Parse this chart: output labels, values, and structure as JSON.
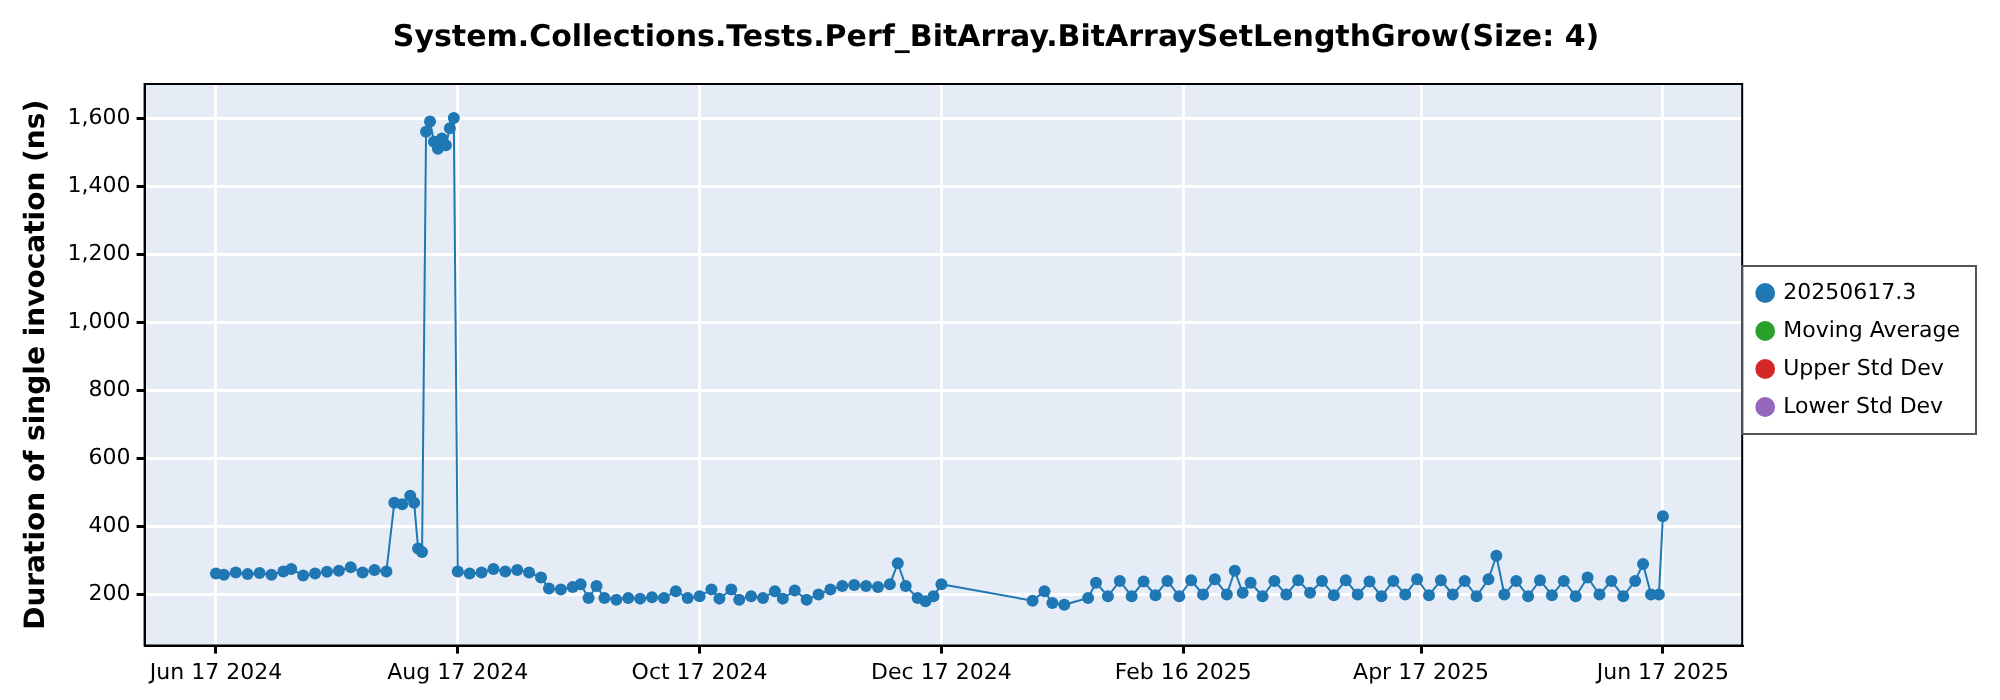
{
  "chart_data": {
    "type": "line",
    "title": "System.Collections.Tests.Perf_BitArray.BitArraySetLengthGrow(Size: 4)",
    "ylabel": "Duration of single invocation (ns)",
    "x": [
      "2024-06-17",
      "2024-06-19",
      "2024-06-22",
      "2024-06-25",
      "2024-06-28",
      "2024-07-01",
      "2024-07-04",
      "2024-07-06",
      "2024-07-09",
      "2024-07-12",
      "2024-07-15",
      "2024-07-18",
      "2024-07-21",
      "2024-07-24",
      "2024-07-27",
      "2024-07-30",
      "2024-08-01",
      "2024-08-03",
      "2024-08-05",
      "2024-08-06",
      "2024-08-07",
      "2024-08-08",
      "2024-08-09",
      "2024-08-10",
      "2024-08-11",
      "2024-08-12",
      "2024-08-13",
      "2024-08-14",
      "2024-08-15",
      "2024-08-16",
      "2024-08-17",
      "2024-08-20",
      "2024-08-23",
      "2024-08-26",
      "2024-08-29",
      "2024-09-01",
      "2024-09-04",
      "2024-09-07",
      "2024-09-09",
      "2024-09-12",
      "2024-09-15",
      "2024-09-17",
      "2024-09-19",
      "2024-09-21",
      "2024-09-23",
      "2024-09-26",
      "2024-09-29",
      "2024-10-02",
      "2024-10-05",
      "2024-10-08",
      "2024-10-11",
      "2024-10-14",
      "2024-10-17",
      "2024-10-20",
      "2024-10-22",
      "2024-10-25",
      "2024-10-27",
      "2024-10-30",
      "2024-11-02",
      "2024-11-05",
      "2024-11-07",
      "2024-11-10",
      "2024-11-13",
      "2024-11-16",
      "2024-11-19",
      "2024-11-22",
      "2024-11-25",
      "2024-11-28",
      "2024-12-01",
      "2024-12-04",
      "2024-12-06",
      "2024-12-08",
      "2024-12-11",
      "2024-12-13",
      "2024-12-15",
      "2024-12-17",
      "2025-01-09",
      "2025-01-12",
      "2025-01-14",
      "2025-01-17",
      "2025-01-23",
      "2025-01-25",
      "2025-01-28",
      "2025-01-31",
      "2025-02-03",
      "2025-02-06",
      "2025-02-09",
      "2025-02-12",
      "2025-02-15",
      "2025-02-18",
      "2025-02-21",
      "2025-02-24",
      "2025-02-27",
      "2025-03-01",
      "2025-03-03",
      "2025-03-05",
      "2025-03-08",
      "2025-03-11",
      "2025-03-14",
      "2025-03-17",
      "2025-03-20",
      "2025-03-23",
      "2025-03-26",
      "2025-03-29",
      "2025-04-01",
      "2025-04-04",
      "2025-04-07",
      "2025-04-10",
      "2025-04-13",
      "2025-04-16",
      "2025-04-19",
      "2025-04-22",
      "2025-04-25",
      "2025-04-28",
      "2025-05-01",
      "2025-05-04",
      "2025-05-06",
      "2025-05-08",
      "2025-05-11",
      "2025-05-14",
      "2025-05-17",
      "2025-05-20",
      "2025-05-23",
      "2025-05-26",
      "2025-05-29",
      "2025-06-01",
      "2025-06-04",
      "2025-06-07",
      "2025-06-10",
      "2025-06-12",
      "2025-06-14",
      "2025-06-16",
      "2025-06-17"
    ],
    "series": [
      {
        "name": "20250617.3",
        "color": "#1f77b4",
        "values": [
          262,
          258,
          265,
          260,
          263,
          258,
          268,
          275,
          256,
          262,
          267,
          270,
          280,
          265,
          272,
          268,
          470,
          465,
          490,
          470,
          335,
          325,
          1560,
          1590,
          1530,
          1510,
          1540,
          1520,
          1570,
          1600,
          268,
          262,
          265,
          275,
          268,
          272,
          265,
          250,
          218,
          215,
          222,
          230,
          190,
          225,
          190,
          185,
          190,
          188,
          192,
          190,
          210,
          190,
          195,
          215,
          188,
          215,
          185,
          195,
          190,
          210,
          188,
          212,
          185,
          200,
          215,
          225,
          228,
          225,
          222,
          230,
          292,
          225,
          190,
          180,
          195,
          230,
          182,
          210,
          175,
          170,
          190,
          235,
          195,
          240,
          195,
          238,
          198,
          240,
          195,
          242,
          200,
          245,
          200,
          270,
          205,
          235,
          195,
          240,
          200,
          242,
          205,
          240,
          198,
          242,
          200,
          238,
          195,
          240,
          200,
          245,
          198,
          242,
          200,
          240,
          195,
          245,
          314,
          200,
          240,
          195,
          242,
          198,
          240,
          195,
          250,
          200,
          240,
          195,
          240,
          290,
          200,
          200,
          430
        ]
      },
      {
        "name": "Moving Average",
        "color": "#2ca02c",
        "values": [
          null,
          null,
          null,
          null,
          null,
          null,
          null,
          null,
          null,
          null,
          null,
          null,
          null,
          null,
          null,
          null,
          null,
          null,
          null,
          null,
          null,
          null,
          null,
          null,
          null,
          null,
          null,
          null,
          null,
          null,
          null,
          null,
          null,
          null,
          null,
          null,
          null,
          null,
          null,
          null,
          null,
          null,
          null,
          null,
          null,
          null,
          null,
          null,
          null,
          null,
          null,
          null,
          null,
          null,
          null,
          null,
          null,
          null,
          null,
          null,
          null,
          null,
          null,
          null,
          null,
          null,
          null,
          null,
          null,
          null,
          null,
          null,
          null,
          null,
          null,
          null,
          null,
          null,
          null,
          null,
          null,
          null,
          null,
          null,
          null,
          null,
          null,
          null,
          null,
          null,
          null,
          null,
          null,
          null,
          null,
          null,
          null,
          null,
          null,
          null,
          null,
          null,
          null,
          null,
          null,
          null,
          null,
          null,
          null,
          null,
          null,
          null,
          null,
          null,
          null,
          null,
          null,
          null,
          null,
          null,
          null,
          null,
          null,
          null,
          null,
          null,
          null,
          null,
          null,
          null,
          null,
          null,
          null
        ]
      },
      {
        "name": "Upper Std Dev",
        "color": "#d62728",
        "values": [
          null,
          null,
          null,
          null,
          null,
          null,
          null,
          null,
          null,
          null,
          null,
          null,
          null,
          null,
          null,
          null,
          null,
          null,
          null,
          null,
          null,
          null,
          null,
          null,
          null,
          null,
          null,
          null,
          null,
          null,
          null,
          null,
          null,
          null,
          null,
          null,
          null,
          null,
          null,
          null,
          null,
          null,
          null,
          null,
          null,
          null,
          null,
          null,
          null,
          null,
          null,
          null,
          null,
          null,
          null,
          null,
          null,
          null,
          null,
          null,
          null,
          null,
          null,
          null,
          null,
          null,
          null,
          null,
          null,
          null,
          null,
          null,
          null,
          null,
          null,
          null,
          null,
          null,
          null,
          null,
          null,
          null,
          null,
          null,
          null,
          null,
          null,
          null,
          null,
          null,
          null,
          null,
          null,
          null,
          null,
          null,
          null,
          null,
          null,
          null,
          null,
          null,
          null,
          null,
          null,
          null,
          null,
          null,
          null,
          null,
          null,
          null,
          null,
          null,
          null,
          null,
          null,
          null,
          null,
          null,
          null,
          null,
          null,
          null,
          null,
          null,
          null,
          null,
          null,
          null,
          null,
          null,
          null
        ]
      },
      {
        "name": "Lower Std Dev",
        "color": "#9467bd",
        "values": [
          null,
          null,
          null,
          null,
          null,
          null,
          null,
          null,
          null,
          null,
          null,
          null,
          null,
          null,
          null,
          null,
          null,
          null,
          null,
          null,
          null,
          null,
          null,
          null,
          null,
          null,
          null,
          null,
          null,
          null,
          null,
          null,
          null,
          null,
          null,
          null,
          null,
          null,
          null,
          null,
          null,
          null,
          null,
          null,
          null,
          null,
          null,
          null,
          null,
          null,
          null,
          null,
          null,
          null,
          null,
          null,
          null,
          null,
          null,
          null,
          null,
          null,
          null,
          null,
          null,
          null,
          null,
          null,
          null,
          null,
          null,
          null,
          null,
          null,
          null,
          null,
          null,
          null,
          null,
          null,
          null,
          null,
          null,
          null,
          null,
          null,
          null,
          null,
          null,
          null,
          null,
          null,
          null,
          null,
          null,
          null,
          null,
          null,
          null,
          null,
          null,
          null,
          null,
          null,
          null,
          null,
          null,
          null,
          null,
          null,
          null,
          null,
          null,
          null,
          null,
          null,
          null,
          null,
          null,
          null,
          null,
          null,
          null,
          null,
          null,
          null,
          null,
          null,
          null,
          null,
          null,
          null,
          null
        ]
      }
    ],
    "xlim": [
      "2024-05-30",
      "2025-07-07"
    ],
    "xticks": [
      {
        "value": "2024-06-17",
        "label": "Jun 17 2024"
      },
      {
        "value": "2024-08-17",
        "label": "Aug 17 2024"
      },
      {
        "value": "2024-10-17",
        "label": "Oct 17 2024"
      },
      {
        "value": "2024-12-17",
        "label": "Dec 17 2024"
      },
      {
        "value": "2025-02-16",
        "label": "Feb 16 2025"
      },
      {
        "value": "2025-04-17",
        "label": "Apr 17 2025"
      },
      {
        "value": "2025-06-17",
        "label": "Jun 17 2025"
      }
    ],
    "ylim": [
      50,
      1700
    ],
    "yticks": [
      200,
      400,
      600,
      800,
      {
        "value": 1000,
        "label": "1,000"
      },
      {
        "value": 1200,
        "label": "1,200"
      },
      {
        "value": 1400,
        "label": "1,400"
      },
      {
        "value": 1600,
        "label": "1,600"
      }
    ],
    "grid": true,
    "legend": "right",
    "marker": "circle",
    "line_style": "solid"
  }
}
